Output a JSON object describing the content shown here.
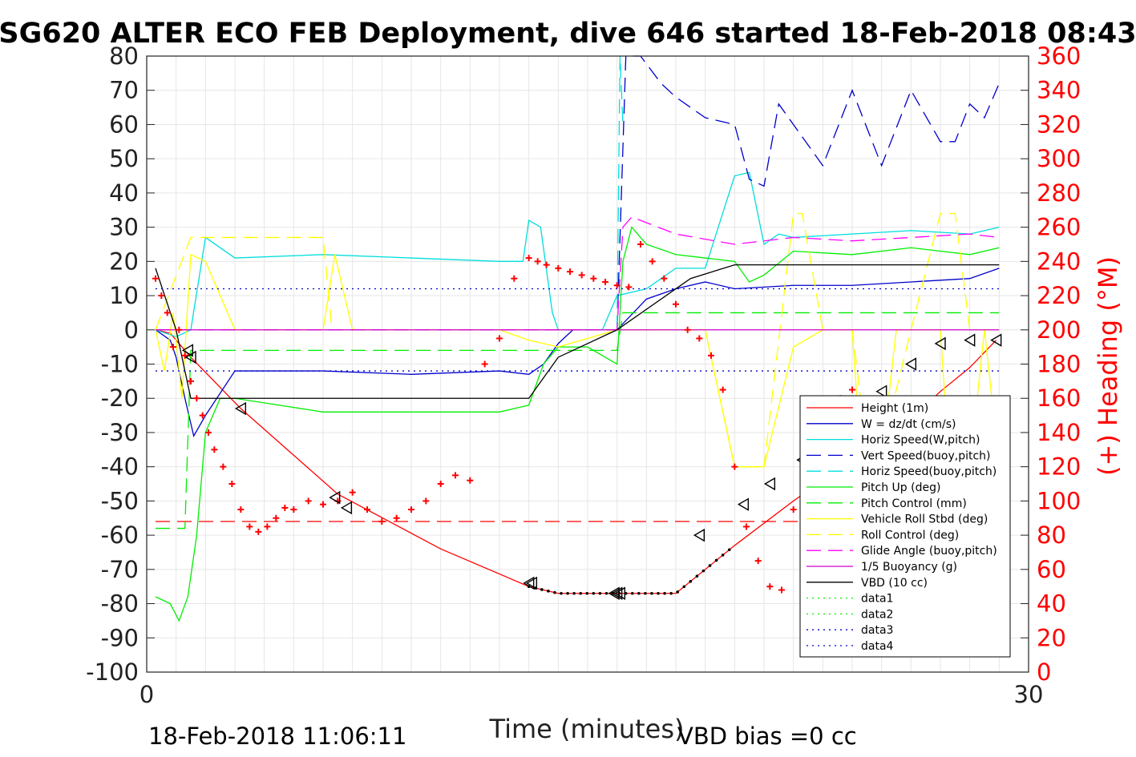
{
  "title": "SG620 ALTER ECO FEB Deployment, dive 646 started 18-Feb-2018 08:43",
  "footer_left": "18-Feb-2018 11:06:11",
  "footer_right": "VBD bias =0 cc",
  "chart_data": {
    "type": "line",
    "xlabel": "Time (minutes)",
    "ylabel_left": "",
    "ylabel_right": "(+) Heading (°M)",
    "xlim": [
      0,
      30
    ],
    "ylim_left": [
      -100,
      80
    ],
    "ylim_right": [
      0,
      360
    ],
    "x_ticks": [
      0,
      30
    ],
    "y_ticks_left": [
      80,
      70,
      60,
      50,
      40,
      30,
      20,
      10,
      0,
      -10,
      -20,
      -30,
      -40,
      -50,
      -60,
      -70,
      -80,
      -90,
      -100
    ],
    "y_ticks_right": [
      360,
      340,
      320,
      300,
      280,
      260,
      240,
      220,
      200,
      180,
      160,
      140,
      120,
      100,
      80,
      60,
      40,
      20,
      0
    ],
    "grid": true,
    "legend_position": "lower-right",
    "series": [
      {
        "name": "Height (1m)",
        "color": "#ff0000",
        "style": "solid",
        "x": [
          0.3,
          0.8,
          1.5,
          3.2,
          6.5,
          10.0,
          13.0,
          14.0,
          16.0,
          18.0,
          20.0,
          22.0,
          24.0,
          26.0,
          27.0,
          28.0,
          28.9
        ],
        "y": [
          0,
          -1,
          -8,
          -23,
          -48,
          -64,
          -75,
          -77,
          -77,
          -77,
          -63,
          -50,
          -38,
          -26,
          -18,
          -11,
          -3
        ]
      },
      {
        "name": "W = dz/dt (cm/s)",
        "color": "#0000cc",
        "style": "solid",
        "x": [
          0.3,
          0.8,
          1.0,
          1.3,
          1.6,
          2.0,
          3.0,
          6.0,
          9.0,
          12.0,
          13.0,
          13.5,
          14.0,
          14.5,
          15.0,
          16.0,
          17.0,
          18.0,
          19.0,
          20.0,
          22.0,
          24.0,
          26.0,
          28.0,
          29.0
        ],
        "y": [
          0,
          -3,
          -8,
          -20,
          -31,
          -25,
          -12,
          -12,
          -13,
          -12,
          -13,
          -10,
          -4,
          0,
          0,
          0,
          9,
          12,
          14,
          12,
          13,
          13,
          14,
          15,
          18
        ]
      },
      {
        "name": "Horiz Speed(W,pitch)",
        "color": "#00dddd",
        "style": "solid",
        "x": [
          0.3,
          1.0,
          1.5,
          2.0,
          3.0,
          6.0,
          9.0,
          12.0,
          12.8,
          13.0,
          13.4,
          13.8,
          14.0,
          14.5,
          15.0,
          15.5,
          16.0,
          17.0,
          18.0,
          19.0,
          20.0,
          20.5,
          21.0,
          21.5,
          22.0,
          24.0,
          26.0,
          28.0,
          29.0
        ],
        "y": [
          0,
          -2,
          0,
          27,
          21,
          22,
          21,
          20,
          20,
          32,
          30,
          5,
          0,
          0,
          0,
          0,
          10,
          12,
          18,
          18,
          45,
          46,
          25,
          28,
          27,
          28,
          29,
          28,
          30
        ]
      },
      {
        "name": "Vert Speed(buoy,pitch)",
        "color": "#0000cc",
        "style": "dashed",
        "x": [
          16.0,
          16.3,
          16.8,
          17.5,
          18.0,
          19.0,
          20.0,
          20.5,
          21.0,
          21.5,
          22.0,
          23.0,
          24.0,
          25.0,
          26.0,
          27.0,
          27.5,
          28.0,
          28.5,
          29.0
        ],
        "y": [
          0,
          80,
          80,
          72,
          68,
          62,
          60,
          44,
          42,
          66,
          60,
          48,
          70,
          48,
          70,
          55,
          55,
          66,
          62,
          72
        ]
      },
      {
        "name": "Horiz Speed(buoy,pitch)",
        "color": "#00dddd",
        "style": "dashed",
        "x": [
          16.0,
          16.1,
          16.2
        ],
        "y": [
          0,
          80,
          60
        ]
      },
      {
        "name": "Pitch Up (deg)",
        "color": "#00ee00",
        "style": "solid",
        "x": [
          0.3,
          0.8,
          1.1,
          1.4,
          1.7,
          2.0,
          2.5,
          3.0,
          6.0,
          9.0,
          12.0,
          12.5,
          13.0,
          13.5,
          14.0,
          15.0,
          16.0,
          16.2,
          16.5,
          17.0,
          18.0,
          19.0,
          20.0,
          20.5,
          21.0,
          22.0,
          24.0,
          26.0,
          28.0,
          29.0
        ],
        "y": [
          -78,
          -80,
          -85,
          -78,
          -60,
          -30,
          -20,
          -20,
          -24,
          -24,
          -24,
          -23,
          -22,
          -10,
          -5,
          -5,
          -10,
          20,
          30,
          25,
          22,
          21,
          20,
          14,
          16,
          23,
          22,
          24,
          22,
          24
        ]
      },
      {
        "name": "Pitch Control (mm)",
        "color": "#00ee00",
        "style": "dashed",
        "x": [
          0.3,
          1.3,
          1.5,
          16.0,
          16.2,
          29.0
        ],
        "y": [
          -58,
          -58,
          -6,
          -6,
          5,
          5
        ]
      },
      {
        "name": "Vehicle Roll Stbd (deg)",
        "color": "#ffff00",
        "style": "solid",
        "x": [
          0.3,
          0.6,
          0.9,
          1.2,
          1.5,
          2.0,
          3.0,
          6.0,
          6.4,
          7.0,
          9.0,
          12.0,
          13.0,
          14.0,
          16.0,
          18.0,
          19.0,
          19.3,
          20.0,
          21.0,
          22.0,
          23.0,
          24.0,
          24.3,
          25.0,
          25.5,
          26.0,
          27.0,
          27.3,
          28.0,
          28.5,
          29.0
        ],
        "y": [
          0,
          -12,
          5,
          -20,
          22,
          20,
          0,
          0,
          22,
          0,
          0,
          0,
          -3,
          -5,
          0,
          0,
          0,
          -12,
          -40,
          -40,
          -5,
          0,
          0,
          -38,
          -38,
          0,
          0,
          0,
          -40,
          -40,
          0,
          -40
        ]
      },
      {
        "name": "Roll Control (deg)",
        "color": "#ffff00",
        "style": "dashed",
        "x": [
          0.3,
          1.5,
          3.0,
          6.0,
          6.3,
          6.7,
          16.0,
          18.0,
          19.0,
          20.0,
          21.0,
          22.0,
          22.3,
          23.0,
          24.0,
          24.5,
          25.0,
          26.0,
          27.0,
          27.5,
          28.0,
          29.0
        ],
        "y": [
          0,
          27,
          27,
          27,
          0,
          0,
          0,
          0,
          0,
          -40,
          -40,
          34,
          34,
          0,
          0,
          -35,
          -35,
          0,
          34,
          34,
          0,
          0
        ]
      },
      {
        "name": "Glide Angle (buoy,pitch)",
        "color": "#ff00ff",
        "style": "dashed",
        "x": [
          0.3,
          16.0,
          16.2,
          16.5,
          18.0,
          20.0,
          22.0,
          24.0,
          26.0,
          28.0,
          29.0
        ],
        "y": [
          0,
          0,
          30,
          33,
          28,
          25,
          27,
          26,
          27,
          28,
          27
        ]
      },
      {
        "name": "1/5 Buoyancy (g)",
        "color": "#cc00cc",
        "style": "solid",
        "x": [
          0.3,
          29.0
        ],
        "y": [
          0,
          0
        ]
      },
      {
        "name": "VBD (10 cc)",
        "color": "#000000",
        "style": "solid",
        "x": [
          0.3,
          1.0,
          1.5,
          13.0,
          14.0,
          16.0,
          18.5,
          20.0,
          29.0
        ],
        "y": [
          18,
          0,
          -20,
          -20,
          -8,
          0,
          15,
          19,
          19
        ]
      },
      {
        "name": "data1",
        "color": "#00ee00",
        "style": "dotted",
        "x": [],
        "y": []
      },
      {
        "name": "data2",
        "color": "#00ee00",
        "style": "dotted",
        "x": [],
        "y": []
      },
      {
        "name": "data3",
        "color": "#0000cc",
        "style": "dotted",
        "x": [
          0.3,
          29.0
        ],
        "y": [
          12,
          12
        ]
      },
      {
        "name": "data4",
        "color": "#0000cc",
        "style": "dotted",
        "x": [
          0.3,
          29.0
        ],
        "y": [
          -12,
          -12
        ]
      }
    ],
    "extra_lines": [
      {
        "color": "#cc00cc",
        "style": "dashed",
        "x": [
          0.3,
          16.0
        ],
        "y": [
          0,
          0
        ]
      },
      {
        "color": "#ff0000",
        "style": "dashed",
        "x": [
          0.3,
          29.0
        ],
        "y": [
          -56,
          -56
        ]
      }
    ],
    "heading_points": {
      "color": "#ff0000",
      "marker": "+",
      "x": [
        0.3,
        0.5,
        0.7,
        0.9,
        1.1,
        1.3,
        1.5,
        1.7,
        1.9,
        2.1,
        2.3,
        2.6,
        2.9,
        3.2,
        3.5,
        3.8,
        4.1,
        4.4,
        4.7,
        5.0,
        5.5,
        6.0,
        6.5,
        7.0,
        7.5,
        8.0,
        8.5,
        9.0,
        9.5,
        10.0,
        10.5,
        11.0,
        11.5,
        12.0,
        12.5,
        13.0,
        13.3,
        13.6,
        14.0,
        14.4,
        14.8,
        15.2,
        15.6,
        16.0,
        16.4,
        16.8,
        17.2,
        17.6,
        18.0,
        18.4,
        18.8,
        19.2,
        19.6,
        20.0,
        20.4,
        20.8,
        21.2,
        21.6,
        22.0,
        22.4,
        22.8,
        23.2,
        23.6,
        24.0,
        24.4,
        24.8,
        25.2,
        25.6,
        26.0,
        26.4,
        26.8,
        27.2,
        27.6,
        28.0,
        28.4,
        28.8,
        29.0
      ],
      "heading": [
        230,
        220,
        210,
        190,
        200,
        185,
        170,
        160,
        150,
        140,
        130,
        120,
        110,
        95,
        85,
        82,
        85,
        90,
        96,
        95,
        100,
        98,
        100,
        105,
        95,
        88,
        90,
        95,
        100,
        110,
        115,
        112,
        180,
        195,
        230,
        242,
        240,
        238,
        236,
        234,
        232,
        230,
        228,
        226,
        225,
        250,
        240,
        230,
        215,
        200,
        195,
        185,
        165,
        120,
        85,
        65,
        50,
        48,
        95,
        110,
        125,
        140,
        160,
        165,
        120,
        70,
        60,
        55,
        55,
        95,
        60,
        50,
        45,
        60,
        85,
        110,
        130
      ]
    },
    "triangle_markers": {
      "x": [
        1.4,
        1.5,
        3.2,
        6.4,
        6.8,
        13.0,
        13.1,
        15.9,
        16.0,
        16.1,
        18.8,
        20.3,
        21.2,
        22.3,
        23.0,
        24.0,
        25.0,
        26.0,
        27.0,
        28.0,
        28.9
      ],
      "y": [
        -6,
        -8,
        -23,
        -49,
        -52,
        -74,
        -74,
        -77,
        -77,
        -77,
        -60,
        -51,
        -45,
        -38,
        -31,
        -25,
        -18,
        -10,
        -4,
        -3,
        -3
      ]
    }
  }
}
